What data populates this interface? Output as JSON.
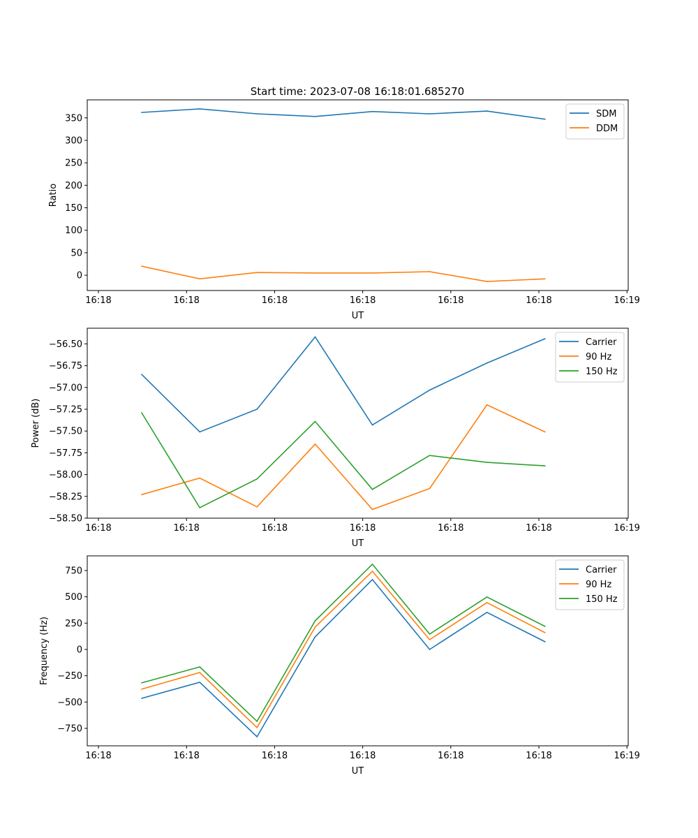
{
  "title": "Start time: 2023-07-08 16:18:01.685270",
  "colors": {
    "blue": "#1f77b4",
    "orange": "#ff7f0e",
    "green": "#2ca02c"
  },
  "chart_data": [
    {
      "type": "line",
      "xlabel": "UT",
      "ylabel": "Ratio",
      "x_units": "seconds after 16:18:00",
      "xlim": [
        -1.27,
        60.14
      ],
      "ylim": [
        -34,
        390
      ],
      "xticks": [
        0,
        10,
        20,
        30,
        40,
        50,
        60
      ],
      "xtick_labels": [
        "16:18",
        "16:18",
        "16:18",
        "16:18",
        "16:18",
        "16:18",
        "16:19"
      ],
      "yticks": [
        0,
        50,
        100,
        150,
        200,
        250,
        300,
        350
      ],
      "ytick_labels": [
        "0",
        "50",
        "100",
        "150",
        "200",
        "250",
        "300",
        "350"
      ],
      "legend": "top-right",
      "x": [
        4.9,
        11.5,
        18.0,
        24.6,
        31.1,
        37.6,
        44.1,
        50.7
      ],
      "series": [
        {
          "name": "SDM",
          "color": "#1f77b4",
          "values": [
            362,
            370,
            359,
            353,
            364,
            359,
            365,
            347
          ]
        },
        {
          "name": "DDM",
          "color": "#ff7f0e",
          "values": [
            20,
            -8,
            6,
            5,
            5,
            8,
            -14,
            -8
          ]
        }
      ]
    },
    {
      "type": "line",
      "xlabel": "UT",
      "ylabel": "Power (dB)",
      "x_units": "seconds after 16:18:00",
      "xlim": [
        -1.27,
        60.14
      ],
      "ylim": [
        -58.5,
        -56.32
      ],
      "xticks": [
        0,
        10,
        20,
        30,
        40,
        50,
        60
      ],
      "xtick_labels": [
        "16:18",
        "16:18",
        "16:18",
        "16:18",
        "16:18",
        "16:18",
        "16:19"
      ],
      "yticks": [
        -58.5,
        -58.25,
        -58.0,
        -57.75,
        -57.5,
        -57.25,
        -57.0,
        -56.75,
        -56.5
      ],
      "ytick_labels": [
        "−58.50",
        "−58.25",
        "−58.00",
        "−57.75",
        "−57.50",
        "−57.25",
        "−57.00",
        "−56.75",
        "−56.50"
      ],
      "legend": "top-right",
      "x": [
        4.9,
        11.5,
        18.0,
        24.6,
        31.1,
        37.6,
        44.1,
        50.7
      ],
      "series": [
        {
          "name": "Carrier",
          "color": "#1f77b4",
          "values": [
            -56.85,
            -57.51,
            -57.25,
            -56.42,
            -57.43,
            -57.03,
            -56.72,
            -56.44
          ]
        },
        {
          "name": "90 Hz",
          "color": "#ff7f0e",
          "values": [
            -58.23,
            -58.04,
            -58.37,
            -57.65,
            -58.4,
            -58.16,
            -57.2,
            -57.51
          ]
        },
        {
          "name": "150 Hz",
          "color": "#2ca02c",
          "values": [
            -57.29,
            -58.38,
            -58.05,
            -57.39,
            -58.17,
            -57.78,
            -57.86,
            -57.9
          ]
        }
      ]
    },
    {
      "type": "line",
      "xlabel": "UT",
      "ylabel": "Frequency (Hz)",
      "x_units": "seconds after 16:18:00",
      "xlim": [
        -1.27,
        60.14
      ],
      "ylim": [
        -916,
        889
      ],
      "xticks": [
        0,
        10,
        20,
        30,
        40,
        50,
        60
      ],
      "xtick_labels": [
        "16:18",
        "16:18",
        "16:18",
        "16:18",
        "16:18",
        "16:18",
        "16:19"
      ],
      "yticks": [
        -750,
        -500,
        -250,
        0,
        250,
        500,
        750
      ],
      "ytick_labels": [
        "−750",
        "−500",
        "−250",
        "0",
        "250",
        "500",
        "750"
      ],
      "legend": "top-right",
      "x": [
        4.9,
        11.5,
        18.0,
        24.6,
        31.1,
        37.6,
        44.1,
        50.7
      ],
      "series": [
        {
          "name": "Carrier",
          "color": "#1f77b4",
          "values": [
            -465,
            -312,
            -830,
            120,
            664,
            0,
            352,
            73
          ]
        },
        {
          "name": "90 Hz",
          "color": "#ff7f0e",
          "values": [
            -378,
            -219,
            -743,
            212,
            743,
            93,
            445,
            159
          ]
        },
        {
          "name": "150 Hz",
          "color": "#2ca02c",
          "values": [
            -318,
            -166,
            -683,
            272,
            810,
            146,
            498,
            219
          ]
        }
      ]
    }
  ]
}
